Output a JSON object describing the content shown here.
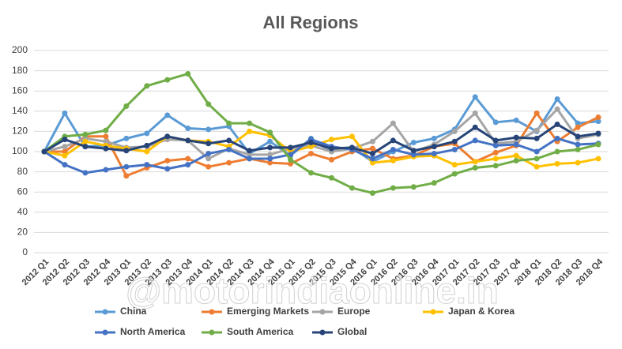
{
  "chart_data": {
    "type": "line",
    "title": "All Regions",
    "categories": [
      "2012 Q1",
      "2012 Q2",
      "2012 Q3",
      "2012 Q4",
      "2013 Q1",
      "2013 Q2",
      "2013 Q3",
      "2013 Q4",
      "2014 Q1",
      "2014 Q2",
      "2014 Q3",
      "2014 Q4",
      "2015 Q1",
      "2015 Q2",
      "2015 Q3",
      "2015 Q4",
      "2016 Q1",
      "2016 Q2",
      "2016 Q3",
      "2016 Q4",
      "2017 Q1",
      "2017 Q2",
      "2017 Q3",
      "2017 Q4",
      "2018 Q1",
      "2018 Q2",
      "2018 Q3",
      "2018 Q4"
    ],
    "series": [
      {
        "name": "China",
        "color": "#5b9bd5",
        "values": [
          100,
          138,
          105,
          106,
          113,
          118,
          136,
          123,
          122,
          125,
          98,
          110,
          96,
          113,
          100,
          104,
          90,
          100,
          109,
          113,
          122,
          154,
          129,
          131,
          120,
          152,
          128,
          130
        ]
      },
      {
        "name": "Emerging Markets",
        "color": "#ed7d31",
        "values": [
          100,
          100,
          115,
          115,
          76,
          84,
          91,
          93,
          85,
          89,
          93,
          89,
          88,
          98,
          92,
          100,
          103,
          93,
          96,
          105,
          108,
          90,
          99,
          106,
          138,
          110,
          124,
          134
        ]
      },
      {
        "name": "Europe",
        "color": "#a5a5a5",
        "values": [
          100,
          105,
          113,
          110,
          104,
          105,
          112,
          111,
          93,
          103,
          97,
          97,
          103,
          106,
          100,
          103,
          110,
          128,
          100,
          107,
          120,
          138,
          108,
          110,
          121,
          142,
          113,
          117
        ]
      },
      {
        "name": "Japan & Korea",
        "color": "#ffc000",
        "values": [
          100,
          96,
          110,
          106,
          103,
          100,
          115,
          111,
          110,
          105,
          120,
          116,
          100,
          105,
          112,
          115,
          89,
          91,
          95,
          96,
          87,
          90,
          93,
          96,
          85,
          88,
          89,
          93
        ]
      },
      {
        "name": "North America",
        "color": "#4472c4",
        "values": [
          100,
          87,
          79,
          82,
          85,
          87,
          83,
          87,
          98,
          102,
          93,
          93,
          97,
          112,
          105,
          102,
          93,
          102,
          97,
          98,
          102,
          111,
          106,
          107,
          100,
          113,
          107,
          108
        ]
      },
      {
        "name": "South America",
        "color": "#70ad47",
        "values": [
          100,
          115,
          117,
          121,
          145,
          165,
          171,
          177,
          147,
          128,
          128,
          119,
          92,
          79,
          74,
          64,
          59,
          64,
          65,
          69,
          78,
          84,
          86,
          91,
          93,
          100,
          102,
          107
        ]
      },
      {
        "name": "Global",
        "color": "#264478",
        "values": [
          100,
          112,
          105,
          103,
          101,
          106,
          115,
          111,
          108,
          111,
          101,
          104,
          104,
          109,
          103,
          104,
          98,
          111,
          101,
          105,
          110,
          124,
          111,
          114,
          113,
          127,
          115,
          118
        ]
      }
    ],
    "ylim": [
      0,
      200
    ],
    "yticks": [
      0,
      20,
      40,
      60,
      80,
      100,
      120,
      140,
      160,
      180,
      200
    ],
    "grid": true,
    "legend": "bottom",
    "watermark": "@motorindiaonline.in"
  }
}
